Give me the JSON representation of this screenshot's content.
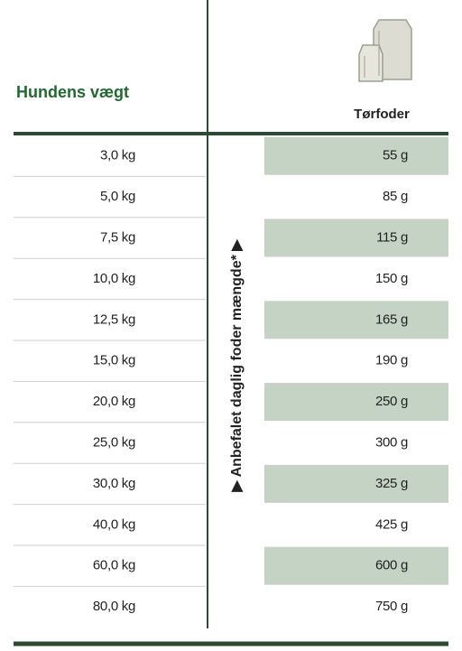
{
  "header": {
    "weight_label": "Hundens vægt",
    "food_label": "Tørfoder"
  },
  "side_label": "▶ Anbefalet daglig foder mængde* ▶",
  "rows": [
    [
      "3,0 kg",
      "55 g"
    ],
    [
      "5,0 kg",
      "85 g"
    ],
    [
      "7,5 kg",
      "115 g"
    ],
    [
      "10,0 kg",
      "150 g"
    ],
    [
      "12,5 kg",
      "165 g"
    ],
    [
      "15,0 kg",
      "190 g"
    ],
    [
      "20,0 kg",
      "250 g"
    ],
    [
      "25,0 kg",
      "300 g"
    ],
    [
      "30,0 kg",
      "325 g"
    ],
    [
      "40,0 kg",
      "425 g"
    ],
    [
      "60,0 kg",
      "600 g"
    ],
    [
      "80,0 kg",
      "750 g"
    ]
  ]
}
